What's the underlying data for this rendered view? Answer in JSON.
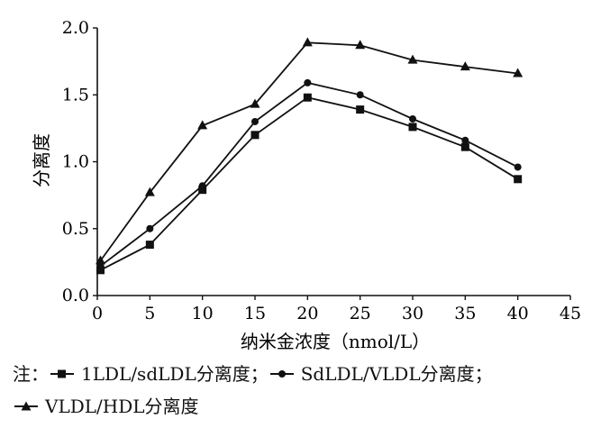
{
  "chart_data": {
    "type": "line",
    "xlabel": "纳米金浓度（nmol/L）",
    "ylabel": "分离度",
    "xlim": [
      0,
      45
    ],
    "ylim": [
      0,
      2.0
    ],
    "xticks": [
      0,
      5,
      10,
      15,
      20,
      25,
      30,
      35,
      40,
      45
    ],
    "yticks": [
      0.0,
      0.5,
      1.0,
      1.5,
      2.0
    ],
    "xtick_labels": [
      "0",
      "5",
      "10",
      "15",
      "20",
      "25",
      "30",
      "35",
      "40",
      "45"
    ],
    "ytick_labels": [
      "0.0",
      "0.5",
      "1.0",
      "1.5",
      "2.0"
    ],
    "grid": false,
    "series": [
      {
        "name": "1LDL/sdLDL分离度",
        "marker": "square",
        "x": [
          0.3,
          5,
          10,
          15,
          20,
          25,
          30,
          35,
          40
        ],
        "y": [
          0.19,
          0.38,
          0.79,
          1.2,
          1.48,
          1.39,
          1.26,
          1.11,
          0.87
        ]
      },
      {
        "name": "SdLDL/VLDL分离度",
        "marker": "circle",
        "x": [
          0.3,
          5,
          10,
          15,
          20,
          25,
          30,
          35,
          40
        ],
        "y": [
          0.22,
          0.5,
          0.82,
          1.3,
          1.59,
          1.5,
          1.32,
          1.16,
          0.96
        ]
      },
      {
        "name": "VLDL/HDL分离度",
        "marker": "triangle",
        "x": [
          0.3,
          5,
          10,
          15,
          20,
          25,
          30,
          35,
          40
        ],
        "y": [
          0.26,
          0.77,
          1.27,
          1.43,
          1.89,
          1.87,
          1.76,
          1.71,
          1.66
        ]
      }
    ]
  },
  "note": {
    "prefix": "注：",
    "sep": "；"
  }
}
